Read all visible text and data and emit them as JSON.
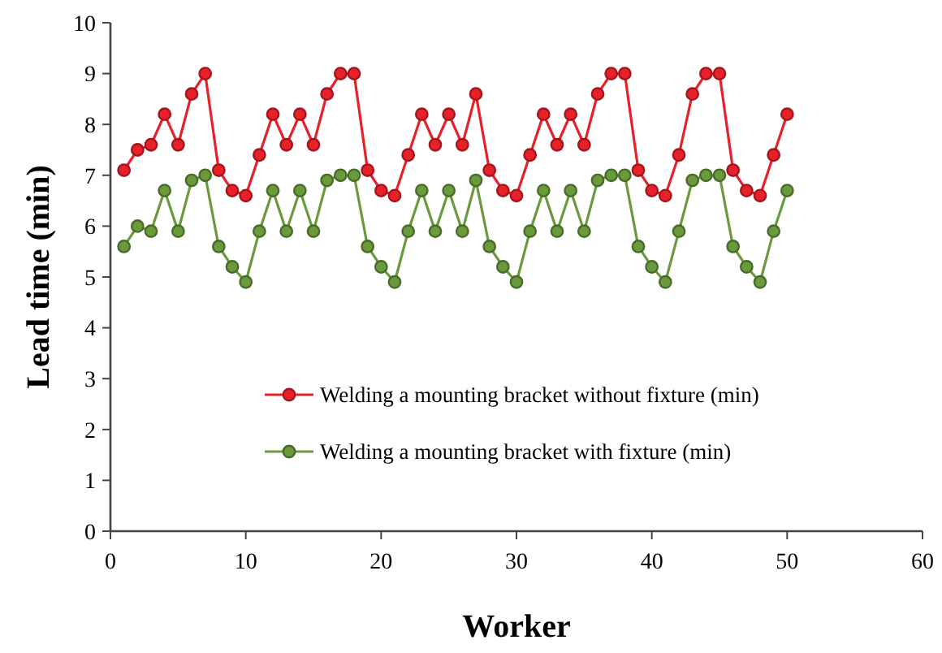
{
  "chart_data": {
    "type": "line",
    "xlabel": "Worker",
    "ylabel": "Lead time (min)",
    "x": [
      1,
      2,
      3,
      4,
      5,
      6,
      7,
      8,
      9,
      10,
      11,
      12,
      13,
      14,
      15,
      16,
      17,
      18,
      19,
      20,
      21,
      22,
      23,
      24,
      25,
      26,
      27,
      28,
      29,
      30,
      31,
      32,
      33,
      34,
      35,
      36,
      37,
      38,
      39,
      40,
      41,
      42,
      43,
      44,
      45,
      46,
      47,
      48,
      49,
      50
    ],
    "series": [
      {
        "name": "Welding a mounting bracket without fixture (min)",
        "color": "#e8202a",
        "values": [
          7.1,
          7.5,
          7.6,
          8.2,
          7.6,
          8.6,
          9.0,
          7.1,
          6.7,
          6.6,
          7.4,
          8.2,
          7.6,
          8.2,
          7.6,
          8.6,
          9.0,
          9.0,
          7.1,
          6.7,
          6.6,
          7.4,
          8.2,
          7.6,
          8.2,
          7.6,
          8.6,
          7.1,
          6.7,
          6.6,
          7.4,
          8.2,
          7.6,
          8.2,
          7.6,
          8.6,
          9.0,
          9.0,
          7.1,
          6.7,
          6.6,
          7.4,
          8.6,
          9.0,
          9.0,
          7.1,
          6.7,
          6.6,
          7.4,
          8.2
        ]
      },
      {
        "name": "Welding a mounting bracket with fixture (min)",
        "color": "#6a9a3c",
        "values": [
          5.6,
          6.0,
          5.9,
          6.7,
          5.9,
          6.9,
          7.0,
          5.6,
          5.2,
          4.9,
          5.9,
          6.7,
          5.9,
          6.7,
          5.9,
          6.9,
          7.0,
          7.0,
          5.6,
          5.2,
          4.9,
          5.9,
          6.7,
          5.9,
          6.7,
          5.9,
          6.9,
          5.6,
          5.2,
          4.9,
          5.9,
          6.7,
          5.9,
          6.7,
          5.9,
          6.9,
          7.0,
          7.0,
          5.6,
          5.2,
          4.9,
          5.9,
          6.9,
          7.0,
          7.0,
          5.6,
          5.2,
          4.9,
          5.9,
          6.7
        ]
      }
    ],
    "xlim": [
      0,
      60
    ],
    "xticks": [
      0,
      10,
      20,
      30,
      40,
      50,
      60
    ],
    "ylim": [
      0,
      10
    ],
    "yticks": [
      0,
      1,
      2,
      3,
      4,
      5,
      6,
      7,
      8,
      9,
      10
    ],
    "grid": false,
    "legend": "left",
    "marker": "circle",
    "line_style": "solid"
  }
}
